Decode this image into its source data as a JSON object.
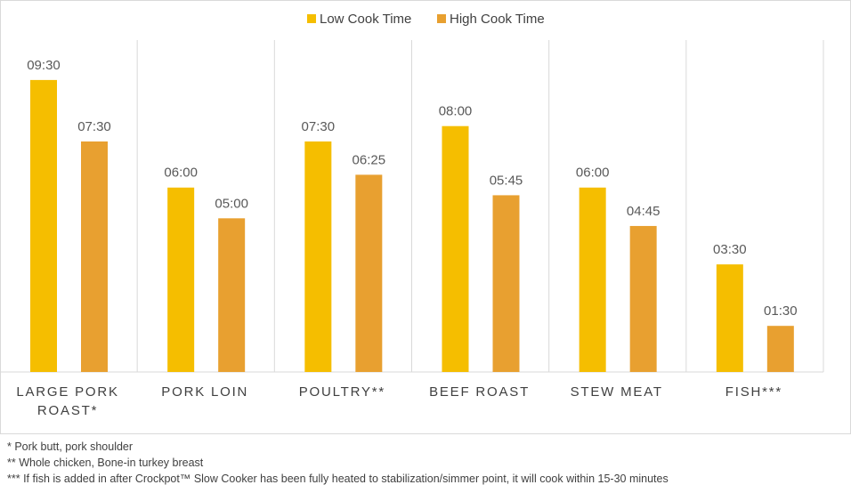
{
  "chart_data": {
    "type": "bar",
    "categories": [
      "LARGE PORK ROAST*",
      "PORK LOIN",
      "POULTRY**",
      "BEEF ROAST",
      "STEW MEAT",
      "FISH***"
    ],
    "series": [
      {
        "name": "Low Cook Time",
        "color": "#f5be00",
        "values": [
          9.5,
          6,
          7.5,
          8,
          6,
          3.5
        ],
        "value_labels": [
          "09:30",
          "06:00",
          "07:30",
          "08:00",
          "06:00",
          "03:30"
        ]
      },
      {
        "name": "High Cook Time",
        "color": "#e8a030",
        "values": [
          7.5,
          5,
          6.4167,
          5.75,
          4.75,
          1.5
        ],
        "value_labels": [
          "07:30",
          "05:00",
          "06:25",
          "05:45",
          "04:45",
          "01:30"
        ]
      }
    ],
    "ylim": [
      0,
      10.8
    ],
    "legend": "top",
    "notes": [
      "* Pork butt, pork shoulder",
      "** Whole chicken, Bone-in turkey breast",
      "*** If fish is added in after Crockpot™ Slow Cooker has been fully heated to stabilization/simmer point, it will cook within 15-30 minutes"
    ]
  }
}
